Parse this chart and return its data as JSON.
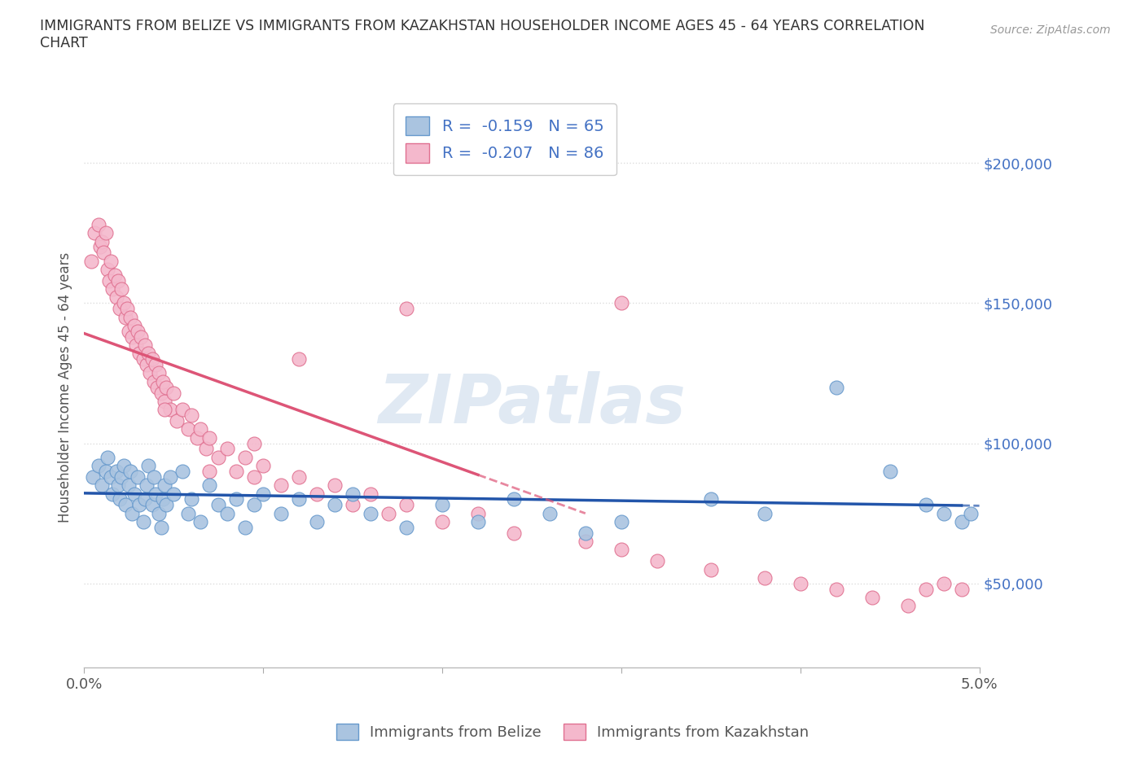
{
  "title": "IMMIGRANTS FROM BELIZE VS IMMIGRANTS FROM KAZAKHSTAN HOUSEHOLDER INCOME AGES 45 - 64 YEARS CORRELATION\nCHART",
  "source_text": "Source: ZipAtlas.com",
  "ylabel": "Householder Income Ages 45 - 64 years",
  "xlim": [
    0.0,
    0.05
  ],
  "ylim": [
    20000,
    220000
  ],
  "xticks": [
    0.0,
    0.01,
    0.02,
    0.03,
    0.04,
    0.05
  ],
  "xticklabels": [
    "0.0%",
    "",
    "",
    "",
    "",
    "5.0%"
  ],
  "ytick_positions": [
    50000,
    100000,
    150000,
    200000
  ],
  "ytick_labels": [
    "$50,000",
    "$100,000",
    "$150,000",
    "$200,000"
  ],
  "ytick_color": "#4472c4",
  "belize_color": "#aac4e0",
  "belize_edge_color": "#6699cc",
  "kazakhstan_color": "#f4b8cc",
  "kazakhstan_edge_color": "#e07090",
  "belize_R": -0.159,
  "belize_N": 65,
  "kazakhstan_R": -0.207,
  "kazakhstan_N": 86,
  "trend_belize_color": "#2255aa",
  "trend_kazakhstan_color": "#dd5577",
  "watermark": "ZIPatlas",
  "watermark_color": "#c8d8ea",
  "legend_text_color": "#4472c4",
  "belize_x": [
    0.0005,
    0.0008,
    0.001,
    0.0012,
    0.0013,
    0.0015,
    0.0016,
    0.0018,
    0.0019,
    0.002,
    0.0021,
    0.0022,
    0.0023,
    0.0025,
    0.0026,
    0.0027,
    0.0028,
    0.003,
    0.0031,
    0.0033,
    0.0034,
    0.0035,
    0.0036,
    0.0038,
    0.0039,
    0.004,
    0.0042,
    0.0043,
    0.0044,
    0.0045,
    0.0046,
    0.0048,
    0.005,
    0.0055,
    0.0058,
    0.006,
    0.0065,
    0.007,
    0.0075,
    0.008,
    0.0085,
    0.009,
    0.0095,
    0.01,
    0.011,
    0.012,
    0.013,
    0.014,
    0.015,
    0.016,
    0.018,
    0.02,
    0.022,
    0.024,
    0.026,
    0.028,
    0.03,
    0.035,
    0.038,
    0.042,
    0.045,
    0.047,
    0.048,
    0.049,
    0.0495
  ],
  "belize_y": [
    88000,
    92000,
    85000,
    90000,
    95000,
    88000,
    82000,
    90000,
    85000,
    80000,
    88000,
    92000,
    78000,
    85000,
    90000,
    75000,
    82000,
    88000,
    78000,
    72000,
    80000,
    85000,
    92000,
    78000,
    88000,
    82000,
    75000,
    70000,
    80000,
    85000,
    78000,
    88000,
    82000,
    90000,
    75000,
    80000,
    72000,
    85000,
    78000,
    75000,
    80000,
    70000,
    78000,
    82000,
    75000,
    80000,
    72000,
    78000,
    82000,
    75000,
    70000,
    78000,
    72000,
    80000,
    75000,
    68000,
    72000,
    80000,
    75000,
    120000,
    90000,
    78000,
    75000,
    72000,
    75000
  ],
  "kazakhstan_x": [
    0.0004,
    0.0006,
    0.0008,
    0.0009,
    0.001,
    0.0011,
    0.0012,
    0.0013,
    0.0014,
    0.0015,
    0.0016,
    0.0017,
    0.0018,
    0.0019,
    0.002,
    0.0021,
    0.0022,
    0.0023,
    0.0024,
    0.0025,
    0.0026,
    0.0027,
    0.0028,
    0.0029,
    0.003,
    0.0031,
    0.0032,
    0.0033,
    0.0034,
    0.0035,
    0.0036,
    0.0037,
    0.0038,
    0.0039,
    0.004,
    0.0041,
    0.0042,
    0.0043,
    0.0044,
    0.0045,
    0.0046,
    0.0048,
    0.005,
    0.0052,
    0.0055,
    0.0058,
    0.006,
    0.0063,
    0.0065,
    0.0068,
    0.007,
    0.0075,
    0.008,
    0.0085,
    0.009,
    0.0095,
    0.01,
    0.011,
    0.012,
    0.013,
    0.014,
    0.015,
    0.016,
    0.017,
    0.018,
    0.02,
    0.022,
    0.024,
    0.028,
    0.03,
    0.032,
    0.035,
    0.038,
    0.04,
    0.042,
    0.044,
    0.046,
    0.047,
    0.048,
    0.049,
    0.03,
    0.018,
    0.012,
    0.0095,
    0.007,
    0.0045
  ],
  "kazakhstan_y": [
    165000,
    175000,
    178000,
    170000,
    172000,
    168000,
    175000,
    162000,
    158000,
    165000,
    155000,
    160000,
    152000,
    158000,
    148000,
    155000,
    150000,
    145000,
    148000,
    140000,
    145000,
    138000,
    142000,
    135000,
    140000,
    132000,
    138000,
    130000,
    135000,
    128000,
    132000,
    125000,
    130000,
    122000,
    128000,
    120000,
    125000,
    118000,
    122000,
    115000,
    120000,
    112000,
    118000,
    108000,
    112000,
    105000,
    110000,
    102000,
    105000,
    98000,
    102000,
    95000,
    98000,
    90000,
    95000,
    88000,
    92000,
    85000,
    88000,
    82000,
    85000,
    78000,
    82000,
    75000,
    78000,
    72000,
    75000,
    68000,
    65000,
    62000,
    58000,
    55000,
    52000,
    50000,
    48000,
    45000,
    42000,
    48000,
    50000,
    48000,
    150000,
    148000,
    130000,
    100000,
    90000,
    112000
  ],
  "background_color": "#ffffff",
  "plot_bg_color": "#ffffff",
  "grid_color": "#dddddd"
}
